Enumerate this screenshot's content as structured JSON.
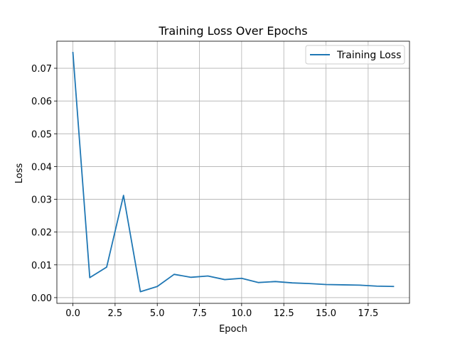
{
  "chart_data": {
    "type": "line",
    "title": "Training Loss Over Epochs",
    "xlabel": "Epoch",
    "ylabel": "Loss",
    "xlim": [
      -0.95,
      19.95
    ],
    "ylim": [
      -0.00175,
      0.07825
    ],
    "xticks": [
      0,
      2.5,
      5,
      7.5,
      10,
      12.5,
      15,
      17.5
    ],
    "xtick_labels": [
      "0.0",
      "2.5",
      "5.0",
      "7.5",
      "10.0",
      "12.5",
      "15.0",
      "17.5"
    ],
    "yticks": [
      0,
      0.01,
      0.02,
      0.03,
      0.04,
      0.05,
      0.06,
      0.07
    ],
    "ytick_labels": [
      "0.00",
      "0.01",
      "0.02",
      "0.03",
      "0.04",
      "0.05",
      "0.06",
      "0.07"
    ],
    "grid": true,
    "legend_position": "top-right",
    "series": [
      {
        "name": "Training Loss",
        "color": "#1f77b4",
        "x": [
          0,
          1,
          2,
          3,
          4,
          5,
          6,
          7,
          8,
          9,
          10,
          11,
          12,
          13,
          14,
          15,
          16,
          17,
          18,
          19
        ],
        "y": [
          0.0748,
          0.0061,
          0.0093,
          0.0312,
          0.0018,
          0.0034,
          0.0071,
          0.0062,
          0.0066,
          0.0055,
          0.0059,
          0.0046,
          0.0049,
          0.0045,
          0.0043,
          0.004,
          0.0039,
          0.0038,
          0.0035,
          0.0034
        ]
      }
    ]
  }
}
